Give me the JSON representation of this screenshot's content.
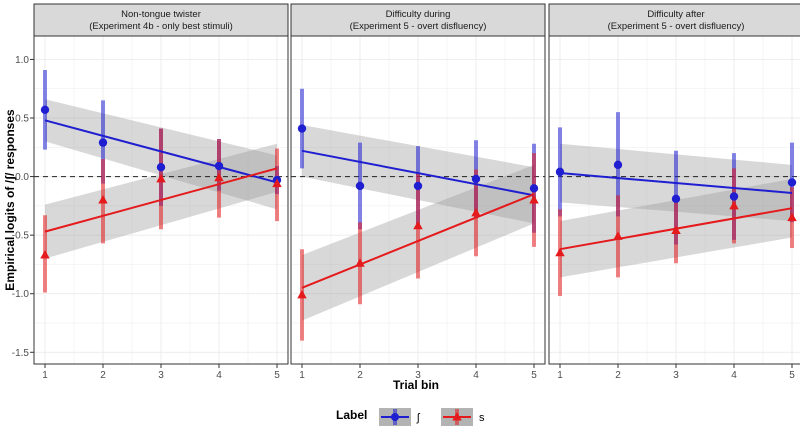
{
  "chart_data": {
    "type": "line",
    "xlabel": "Trial bin",
    "ylabel": "Empirical logits of /ʃ/ responses",
    "x": [
      1,
      2,
      3,
      4,
      5
    ],
    "xticks": [
      "1",
      "2",
      "3",
      "4",
      "5"
    ],
    "ylim": [
      -1.6,
      1.2
    ],
    "yticks": [
      "1.0",
      "0.5",
      "0.0",
      "-0.5",
      "-1.0",
      "-1.5"
    ],
    "ytick_values": [
      1.0,
      0.5,
      0.0,
      -0.5,
      -1.0,
      -1.5
    ],
    "reference_line": 0,
    "legend": {
      "title": "Label",
      "entries": [
        {
          "key": "sh",
          "label": "ʃ",
          "color": "#1f1fd1"
        },
        {
          "key": "s",
          "label": "s",
          "color": "#e41a1c"
        }
      ]
    },
    "panels": [
      {
        "title_line1": "Non-tongue twister",
        "title_line2": "(Experiment 4b - only best stimuli)",
        "series": [
          {
            "key": "sh",
            "color": "#1f1fd1",
            "marker": "circle",
            "points": [
              0.57,
              0.29,
              0.08,
              0.09,
              -0.03
            ],
            "lower": [
              0.23,
              -0.06,
              -0.25,
              -0.12,
              -0.15
            ],
            "upper": [
              0.91,
              0.65,
              0.41,
              0.32,
              0.09
            ],
            "fit_start": 0.48,
            "fit_end": -0.05,
            "band_lower_start": 0.3,
            "band_lower_end": -0.28,
            "band_upper_start": 0.66,
            "band_upper_end": 0.18
          },
          {
            "key": "s",
            "color": "#e41a1c",
            "marker": "triangle",
            "points": [
              -0.67,
              -0.2,
              -0.02,
              -0.01,
              -0.06
            ],
            "lower": [
              -0.99,
              -0.57,
              -0.45,
              -0.35,
              -0.38
            ],
            "upper": [
              -0.33,
              0.15,
              0.41,
              0.32,
              0.24
            ],
            "fit_start": -0.47,
            "fit_end": 0.07,
            "band_lower_start": -0.7,
            "band_lower_end": -0.13,
            "band_upper_start": -0.24,
            "band_upper_end": 0.28
          }
        ]
      },
      {
        "title_line1": "Difficulty during",
        "title_line2": "(Experiment 5 - overt disfluency)",
        "series": [
          {
            "key": "sh",
            "color": "#1f1fd1",
            "marker": "circle",
            "points": [
              0.41,
              -0.08,
              -0.08,
              -0.02,
              -0.1
            ],
            "lower": [
              0.07,
              -0.45,
              -0.42,
              -0.35,
              -0.48
            ],
            "upper": [
              0.75,
              0.29,
              0.26,
              0.31,
              0.28
            ],
            "fit_start": 0.22,
            "fit_end": -0.16,
            "band_lower_start": 0.0,
            "band_lower_end": -0.4,
            "band_upper_start": 0.44,
            "band_upper_end": 0.08
          },
          {
            "key": "s",
            "color": "#e41a1c",
            "marker": "triangle",
            "points": [
              -1.01,
              -0.74,
              -0.42,
              -0.31,
              -0.2
            ],
            "lower": [
              -1.4,
              -1.09,
              -0.87,
              -0.68,
              -0.6
            ],
            "upper": [
              -0.62,
              -0.39,
              0.03,
              0.06,
              0.2
            ],
            "fit_start": -0.95,
            "fit_end": -0.15,
            "band_lower_start": -1.23,
            "band_lower_end": -0.4,
            "band_upper_start": -0.67,
            "band_upper_end": 0.1
          }
        ]
      },
      {
        "title_line1": "Difficulty after",
        "title_line2": "(Experiment 5 - overt disfluency)",
        "series": [
          {
            "key": "sh",
            "color": "#1f1fd1",
            "marker": "circle",
            "points": [
              0.04,
              0.1,
              -0.19,
              -0.17,
              -0.05
            ],
            "lower": [
              -0.34,
              -0.34,
              -0.58,
              -0.54,
              -0.39
            ],
            "upper": [
              0.42,
              0.55,
              0.22,
              0.2,
              0.29
            ],
            "fit_start": 0.03,
            "fit_end": -0.14,
            "band_lower_start": -0.22,
            "band_lower_end": -0.38,
            "band_upper_start": 0.28,
            "band_upper_end": 0.1
          },
          {
            "key": "s",
            "color": "#e41a1c",
            "marker": "triangle",
            "points": [
              -0.65,
              -0.51,
              -0.46,
              -0.25,
              -0.35
            ],
            "lower": [
              -1.02,
              -0.86,
              -0.74,
              -0.57,
              -0.61
            ],
            "upper": [
              -0.28,
              -0.16,
              -0.18,
              0.07,
              -0.09
            ],
            "fit_start": -0.62,
            "fit_end": -0.27,
            "band_lower_start": -0.86,
            "band_lower_end": -0.52,
            "band_upper_start": -0.38,
            "band_upper_end": -0.02
          }
        ]
      }
    ]
  }
}
